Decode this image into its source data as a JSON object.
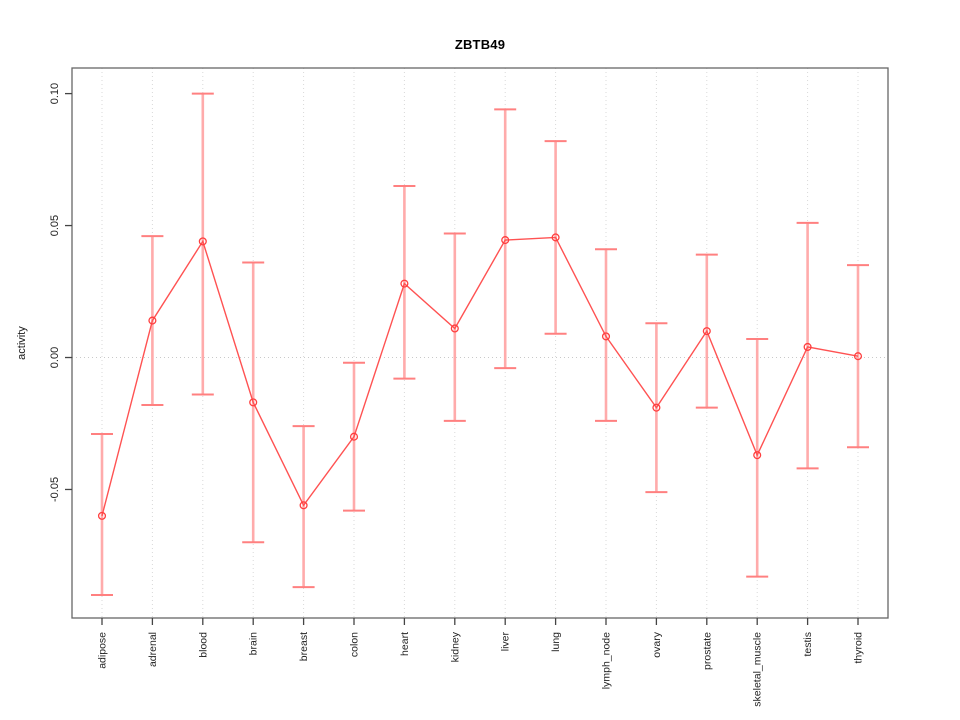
{
  "chart_data": {
    "type": "line",
    "title": "ZBTB49",
    "xlabel": "",
    "ylabel": "activity",
    "legend": null,
    "grid": "vertical-dotted",
    "zero_line_dotted": true,
    "categories": [
      "adipose",
      "adrenal",
      "blood",
      "brain",
      "breast",
      "colon",
      "heart",
      "kidney",
      "liver",
      "lung",
      "lymph_node",
      "ovary",
      "prostate",
      "skeletal_muscle",
      "testis",
      "thyroid"
    ],
    "series": [
      {
        "name": "activity",
        "values": [
          -0.06,
          0.014,
          0.044,
          -0.017,
          -0.056,
          -0.03,
          0.028,
          0.011,
          0.0445,
          0.0455,
          0.008,
          -0.019,
          0.01,
          -0.037,
          0.004,
          0.0005
        ],
        "error_high": [
          -0.029,
          0.046,
          0.1,
          0.036,
          -0.026,
          -0.002,
          0.065,
          0.047,
          0.094,
          0.082,
          0.041,
          0.013,
          0.039,
          0.007,
          0.051,
          0.035
        ],
        "error_low": [
          -0.09,
          -0.018,
          -0.014,
          -0.07,
          -0.087,
          -0.058,
          -0.008,
          -0.024,
          -0.004,
          0.009,
          -0.024,
          -0.051,
          -0.019,
          -0.083,
          -0.042,
          -0.034
        ]
      }
    ],
    "ytick_labels": [
      "0.10",
      "0.05",
      "0.00",
      "-0.05"
    ],
    "ytick_values": [
      0.1,
      0.05,
      0.0,
      -0.05
    ],
    "ylim": [
      -0.0987,
      0.1097
    ],
    "colors": {
      "series_line": "#ff5252",
      "point_stroke": "#ff3e3e",
      "error_bar": "#ffabab",
      "error_cap": "#ff8080",
      "grid": "#d9d9d9",
      "zero_line": "#c9c9c9",
      "box": "#666666",
      "tick": "#444444",
      "text": "#222222",
      "title": "#000000"
    }
  }
}
